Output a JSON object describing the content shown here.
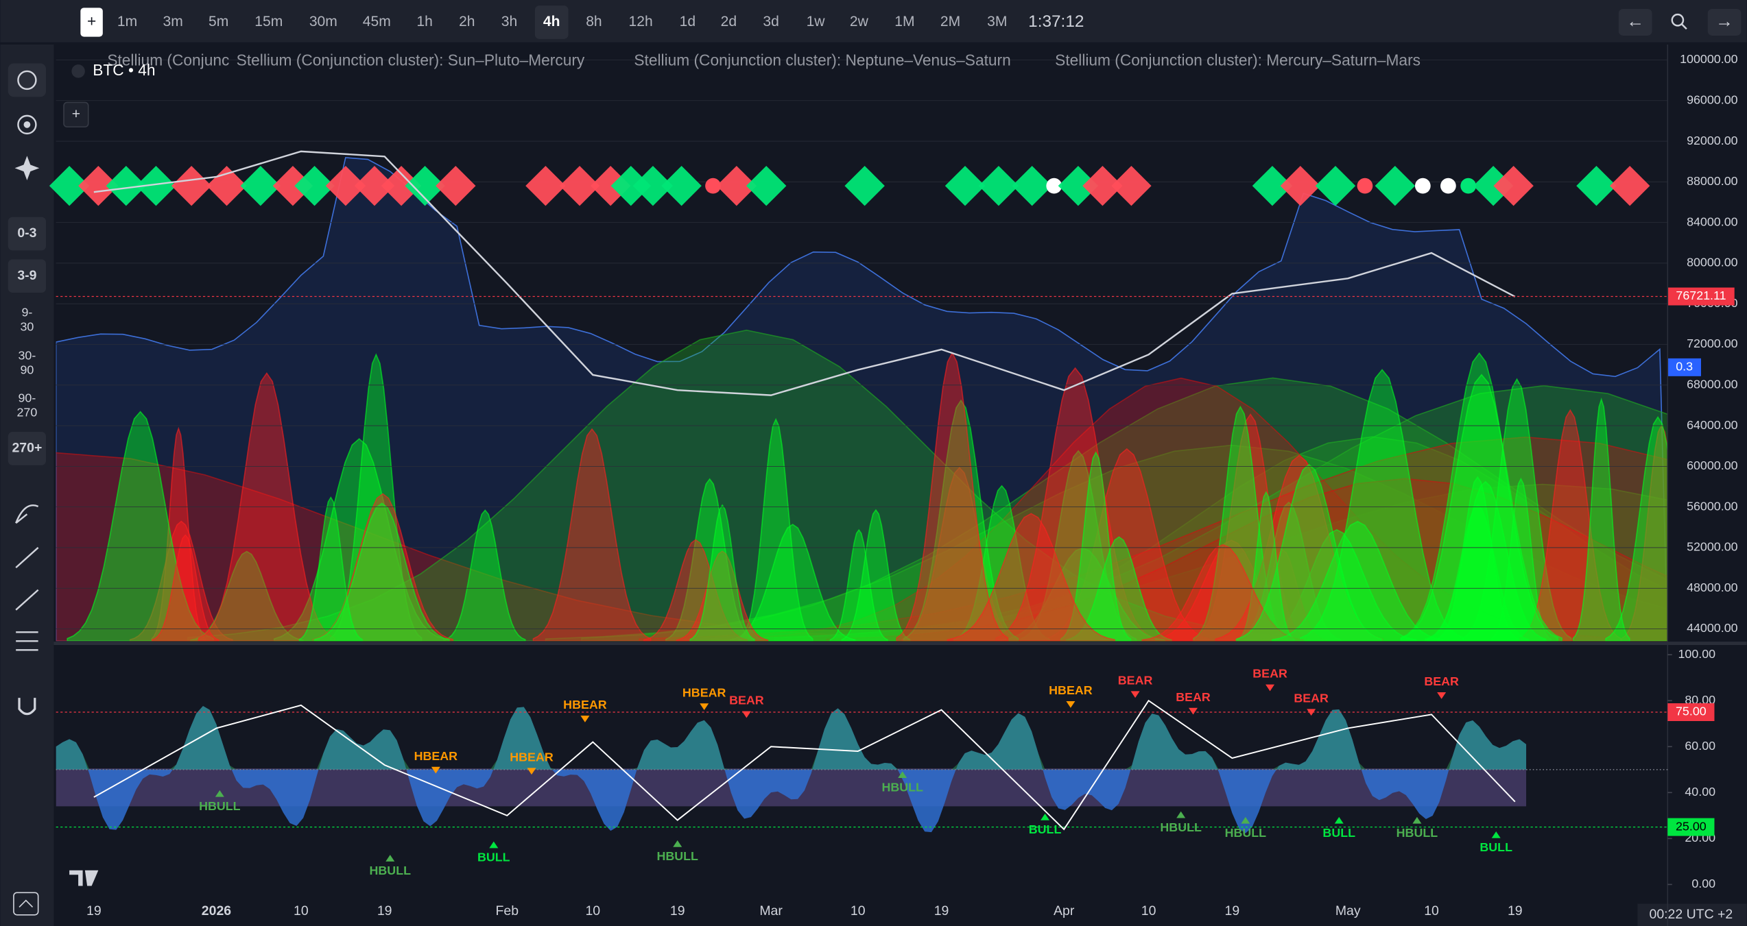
{
  "toolbar": {
    "add": "+",
    "intervals": [
      "1m",
      "3m",
      "5m",
      "15m",
      "30m",
      "45m",
      "1h",
      "2h",
      "3h",
      "4h",
      "8h",
      "12h",
      "1d",
      "2d",
      "3d",
      "1w",
      "2w",
      "1M",
      "2M",
      "3M"
    ],
    "active": "4h",
    "clock": "1:37:12"
  },
  "sidebar": {
    "ranges": [
      "0-3",
      "3-9",
      "9-30",
      "30-90",
      "90-270",
      "270+"
    ]
  },
  "chart_data": [
    {
      "type": "line",
      "legend_texts": [
        "Stellium (Conjunc",
        "Stellium (Conjunction cluster): Sun–Pluto–Mercury",
        "Stellium (Conjunction cluster): Neptune–Venus–Saturn",
        "Stellium (Conjunction cluster): Mercury–Saturn–Mars"
      ],
      "categories": [
        "19",
        "2026",
        "10",
        "19",
        "Feb",
        "10",
        "19",
        "Mar",
        "10",
        "19",
        "Apr",
        "10",
        "19",
        "May",
        "10",
        "19"
      ],
      "series": [
        {
          "name": "BTC • 4h",
          "color": "#d1d4dc",
          "values": [
            87000,
            88500,
            91000,
            90500,
            78000,
            69000,
            67500,
            67000,
            69500,
            71500,
            67500,
            71000,
            77000,
            78500,
            81000,
            76700
          ]
        }
      ],
      "ylim": [
        42800,
        101300
      ],
      "yticks": [
        {
          "value": 100000,
          "label": "100000.00"
        },
        {
          "value": 96000,
          "label": "96000.00"
        },
        {
          "value": 92000,
          "label": "92000.00"
        },
        {
          "value": 88000,
          "label": "88000.00"
        },
        {
          "value": 84000,
          "label": "84000.00"
        },
        {
          "value": 80000,
          "label": "80000.00"
        },
        {
          "value": 76000,
          "label": "76000.00"
        },
        {
          "value": 72000,
          "label": "72000.00"
        },
        {
          "value": 68000,
          "label": "68000.00"
        },
        {
          "value": 64000,
          "label": "64000.00"
        },
        {
          "value": 60000,
          "label": "60000.00"
        },
        {
          "value": 56000,
          "label": "56000.00"
        },
        {
          "value": 52000,
          "label": "52000.00"
        },
        {
          "value": 48000,
          "label": "48000.00"
        },
        {
          "value": 44000,
          "label": "44000.00"
        }
      ],
      "last_price": {
        "value": 76721.11,
        "label": "76721.11",
        "color": "#f23645"
      },
      "marker": "0.3"
    },
    {
      "type": "line",
      "series": [
        {
          "color": "#ffffff",
          "values": [
            38,
            68,
            78,
            52,
            30,
            62,
            28,
            60,
            58,
            76,
            24,
            80,
            55,
            68,
            74,
            36
          ]
        }
      ],
      "ylim": [
        -5,
        104
      ],
      "yticks": [
        {
          "value": 100,
          "label": "100.00"
        },
        {
          "value": 80,
          "label": "80.00"
        },
        {
          "value": 60,
          "label": "60.00"
        },
        {
          "value": 40,
          "label": "40.00"
        },
        {
          "value": 20,
          "label": "20.00"
        },
        {
          "value": 0,
          "label": "0.00"
        }
      ],
      "bands": [
        {
          "value": 75,
          "label": "75.00",
          "color": "#f23645"
        },
        {
          "value": 25,
          "label": "25.00",
          "color": "#00e640"
        }
      ],
      "signals": [
        "HBULL",
        "HBULL",
        "HBEAR",
        "BULL",
        "HBEAR",
        "HBEAR",
        "HBULL",
        "HBEAR",
        "BEAR",
        "HBULL",
        "BULL",
        "HBEAR",
        "BEAR",
        "HBULL",
        "BEAR",
        "HBULL",
        "BEAR",
        "BEAR",
        "BULL",
        "HBULL",
        "BEAR",
        "BULL"
      ]
    }
  ],
  "status": {
    "clock": "00:22 UTC +2"
  }
}
